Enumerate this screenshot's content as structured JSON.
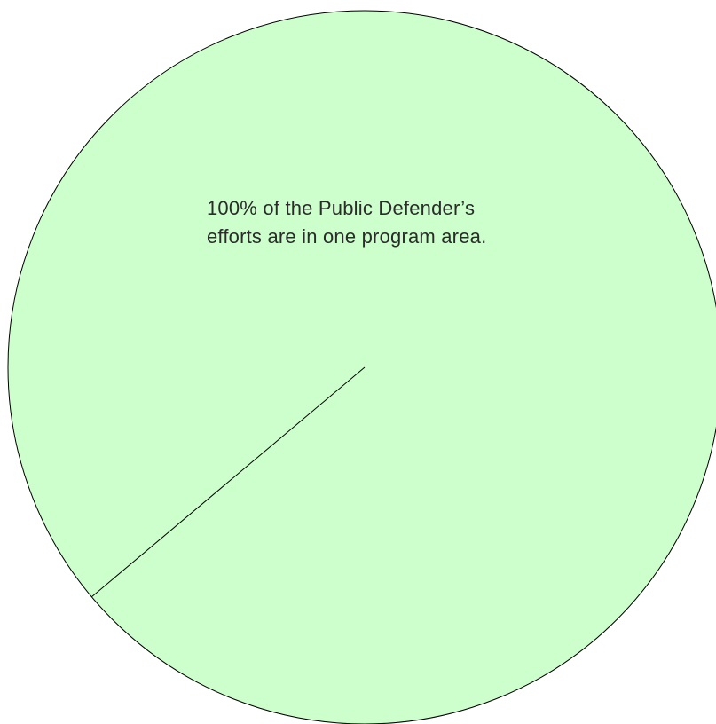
{
  "chart_data": {
    "type": "pie",
    "title": "",
    "slices": [
      {
        "label": "",
        "value": 100
      }
    ],
    "annotation": {
      "line1": "100% of the Public Defender’s",
      "line2": "efforts are in one program area."
    },
    "legend": "none"
  },
  "colors": {
    "slice_fill": "#ccffcc",
    "stroke": "#000000",
    "text": "#2b2b2b"
  }
}
